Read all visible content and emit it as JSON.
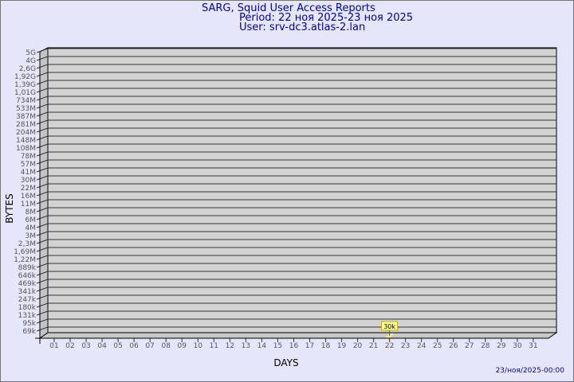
{
  "header": {
    "title": "SARG, Squid User Access Reports",
    "period": "Period: 22 ноя 2025-23 ноя 2025",
    "user": "User: srv-dc3.atlas-2.lan"
  },
  "footer": {
    "timestamp": "23/ноя/2025-00:00"
  },
  "colors": {
    "background": "#e6e6fa",
    "wall": "#d3d3d3",
    "bar": "#ffe680",
    "title": "#0000a0"
  },
  "chart_data": {
    "type": "bar",
    "title": "SARG, Squid User Access Reports",
    "xlabel": "DAYS",
    "ylabel": "BYTES",
    "yscale": "log",
    "grid": true,
    "categories": [
      "01",
      "02",
      "03",
      "04",
      "05",
      "06",
      "07",
      "08",
      "09",
      "10",
      "11",
      "12",
      "13",
      "14",
      "15",
      "16",
      "17",
      "18",
      "19",
      "20",
      "21",
      "22",
      "23",
      "24",
      "25",
      "26",
      "27",
      "28",
      "29",
      "30",
      "31"
    ],
    "y_tick_labels": [
      "5G",
      "4G",
      "2,6G",
      "1,92G",
      "1,39G",
      "1,01G",
      "734M",
      "533M",
      "387M",
      "281M",
      "204M",
      "148M",
      "108M",
      "78M",
      "57M",
      "41M",
      "30M",
      "22M",
      "16M",
      "11M",
      "8M",
      "6M",
      "4M",
      "3M",
      "2,3M",
      "1,69M",
      "1,22M",
      "889k",
      "646k",
      "469k",
      "341k",
      "247k",
      "180k",
      "131k",
      "95k",
      "69k"
    ],
    "bars": [
      {
        "day": "22",
        "value": 30000,
        "label": "30k"
      }
    ]
  }
}
